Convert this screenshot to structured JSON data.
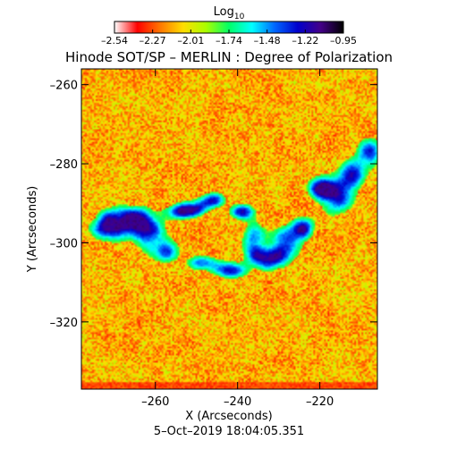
{
  "chart_data": {
    "type": "heatmap",
    "title": "Hinode SOT/SP – MERLIN : Degree of Polarization",
    "xlabel": "X (Arcseconds)",
    "ylabel": "Y (Arcseconds)",
    "footer": "5–Oct–2019 18:04:05.351",
    "xlim": [
      -278,
      -206
    ],
    "ylim": [
      -337,
      -256
    ],
    "x_ticks": [
      {
        "value": -260,
        "label": "–260"
      },
      {
        "value": -240,
        "label": "–240"
      },
      {
        "value": -220,
        "label": "–220"
      }
    ],
    "y_ticks": [
      {
        "value": -260,
        "label": "–260"
      },
      {
        "value": -280,
        "label": "–280"
      },
      {
        "value": -300,
        "label": "–300"
      },
      {
        "value": -320,
        "label": "–320"
      }
    ],
    "colorbar": {
      "label_base": "Log",
      "label_sub": "10",
      "range": [
        -2.54,
        -0.95
      ],
      "ticks": [
        "–2.54",
        "–2.27",
        "–2.01",
        "–1.74",
        "–1.48",
        "–1.22",
        "–0.95"
      ],
      "colormap": [
        "#ffffff",
        "#ff0000",
        "#ff7700",
        "#ffdd00",
        "#aaff00",
        "#00ff66",
        "#00ffff",
        "#0066ff",
        "#0000cc",
        "#440088",
        "#000000"
      ]
    },
    "dominant_values": {
      "background": "red-orange to yellow (≈ -2.4 to -2.0)",
      "structures": "green-cyan-blue-purple bands (≈ -1.7 to -1.1)"
    }
  }
}
